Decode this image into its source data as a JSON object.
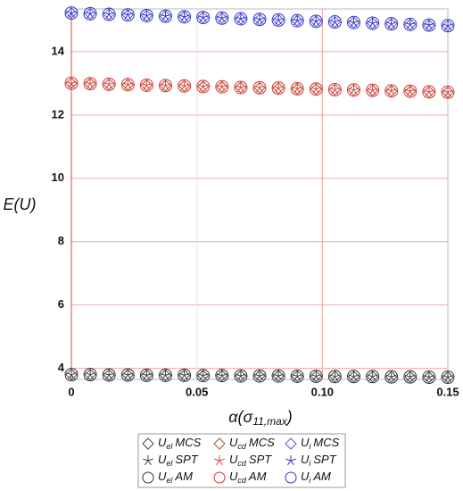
{
  "chart_data": {
    "type": "scatter",
    "ylabel": "E(U)",
    "xlabel": "α(σ",
    "xlabel_subscript": "11,max",
    "xlabel_end": ")",
    "xlim": [
      0,
      0.15
    ],
    "xticks": [
      0,
      0.05,
      {
        "value": 0.1,
        "label": "0.10"
      },
      0.15
    ],
    "ylim": [
      3.65,
      15.35
    ],
    "yticks": [
      4,
      6,
      8,
      10,
      12,
      14
    ],
    "grid": true,
    "grid_color": "#f2a6a6",
    "x": [
      0,
      0.0075,
      0.015,
      0.0225,
      0.03,
      0.0375,
      0.045,
      0.0525,
      0.06,
      0.0675,
      0.075,
      0.0825,
      0.09,
      0.0975,
      0.105,
      0.1125,
      0.12,
      0.1275,
      0.135,
      0.1425,
      0.15
    ],
    "series": [
      {
        "variable": "U",
        "subscript": "el",
        "name": "MCS",
        "marker": "diamond",
        "color": "#444444",
        "values": [
          3.8,
          3.8,
          3.79,
          3.79,
          3.78,
          3.78,
          3.78,
          3.77,
          3.77,
          3.76,
          3.76,
          3.76,
          3.75,
          3.75,
          3.74,
          3.74,
          3.74,
          3.73,
          3.73,
          3.72,
          3.72
        ]
      },
      {
        "variable": "U",
        "subscript": "cd",
        "name": "MCS",
        "marker": "diamond",
        "color": "#a0522d",
        "values": [
          13.0,
          12.99,
          12.97,
          12.96,
          12.94,
          12.93,
          12.92,
          12.9,
          12.89,
          12.87,
          12.86,
          12.85,
          12.83,
          12.82,
          12.8,
          12.79,
          12.78,
          12.76,
          12.75,
          12.73,
          12.72
        ]
      },
      {
        "variable": "U",
        "subscript": "i",
        "name": "MCS",
        "marker": "diamond",
        "color": "#5555cc",
        "values": [
          15.22,
          15.2,
          15.18,
          15.16,
          15.14,
          15.12,
          15.1,
          15.08,
          15.06,
          15.04,
          15.02,
          15.0,
          14.98,
          14.96,
          14.94,
          14.92,
          14.9,
          14.88,
          14.86,
          14.84,
          14.82
        ]
      },
      {
        "variable": "U",
        "subscript": "el",
        "name": "SPT",
        "marker": "star",
        "color": "#444444",
        "values": [
          3.8,
          3.8,
          3.79,
          3.79,
          3.78,
          3.78,
          3.78,
          3.77,
          3.77,
          3.76,
          3.76,
          3.76,
          3.75,
          3.75,
          3.74,
          3.74,
          3.74,
          3.73,
          3.73,
          3.72,
          3.72
        ]
      },
      {
        "variable": "U",
        "subscript": "cd",
        "name": "SPT",
        "marker": "star",
        "color": "#dd4444",
        "values": [
          13.0,
          12.99,
          12.97,
          12.96,
          12.94,
          12.93,
          12.92,
          12.9,
          12.89,
          12.87,
          12.86,
          12.85,
          12.83,
          12.82,
          12.8,
          12.79,
          12.78,
          12.76,
          12.75,
          12.73,
          12.72
        ]
      },
      {
        "variable": "U",
        "subscript": "i",
        "name": "SPT",
        "marker": "star",
        "color": "#3333cc",
        "values": [
          15.22,
          15.2,
          15.18,
          15.16,
          15.14,
          15.12,
          15.1,
          15.08,
          15.06,
          15.04,
          15.02,
          15.0,
          14.98,
          14.96,
          14.94,
          14.92,
          14.9,
          14.88,
          14.86,
          14.84,
          14.82
        ]
      },
      {
        "variable": "U",
        "subscript": "el",
        "name": "AM",
        "marker": "circle",
        "color": "#333333",
        "values": [
          3.8,
          3.8,
          3.79,
          3.79,
          3.78,
          3.78,
          3.78,
          3.77,
          3.77,
          3.76,
          3.76,
          3.76,
          3.75,
          3.75,
          3.74,
          3.74,
          3.74,
          3.73,
          3.73,
          3.72,
          3.72
        ]
      },
      {
        "variable": "U",
        "subscript": "cd",
        "name": "AM",
        "marker": "circle",
        "color": "#dd3333",
        "values": [
          13.0,
          12.99,
          12.97,
          12.96,
          12.94,
          12.93,
          12.92,
          12.9,
          12.89,
          12.87,
          12.86,
          12.85,
          12.83,
          12.82,
          12.8,
          12.79,
          12.78,
          12.76,
          12.75,
          12.73,
          12.72
        ]
      },
      {
        "variable": "U",
        "subscript": "i",
        "name": "AM",
        "marker": "circle",
        "color": "#3333cc",
        "values": [
          15.22,
          15.2,
          15.18,
          15.16,
          15.14,
          15.12,
          15.1,
          15.08,
          15.06,
          15.04,
          15.02,
          15.0,
          14.98,
          14.96,
          14.94,
          14.92,
          14.9,
          14.88,
          14.86,
          14.84,
          14.82
        ]
      }
    ]
  }
}
